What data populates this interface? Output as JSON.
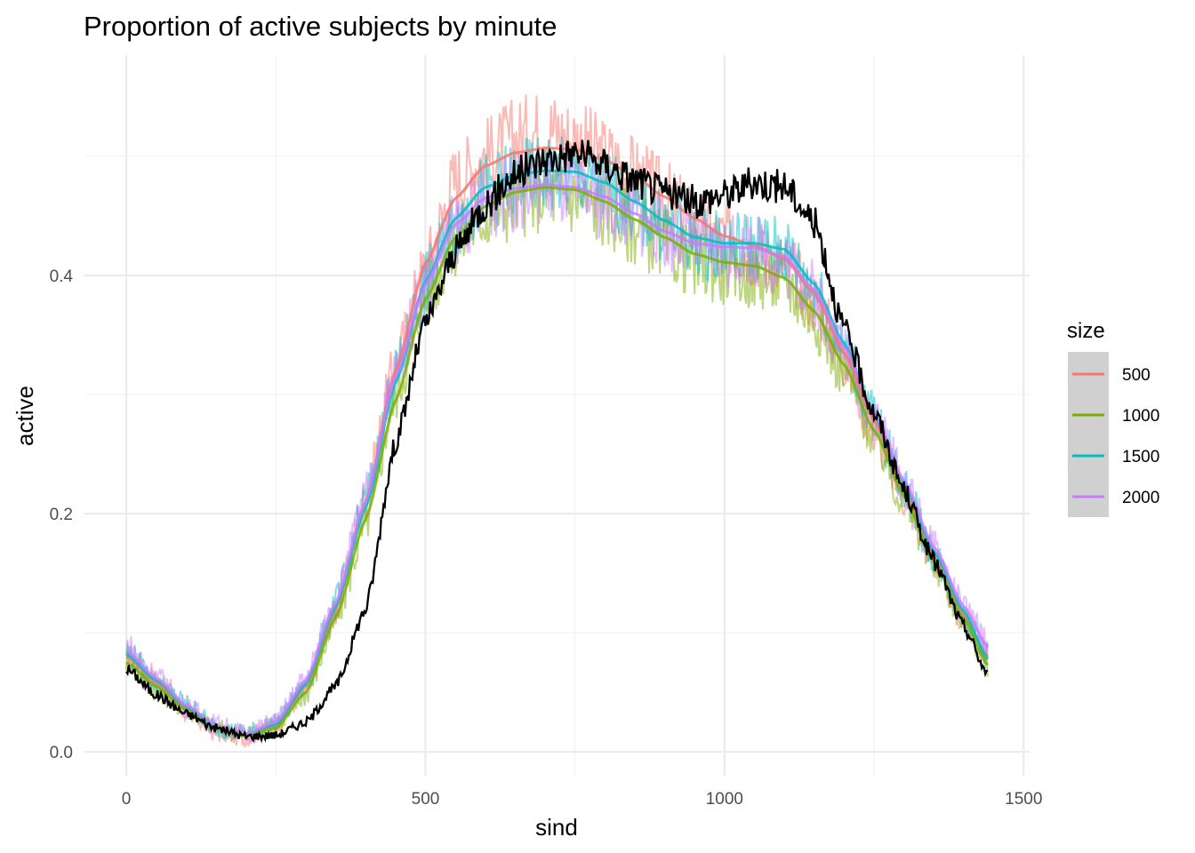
{
  "chart_data": {
    "type": "line",
    "title": "Proportion of active subjects by minute",
    "xlabel": "sind",
    "ylabel": "active",
    "xlim": [
      -70,
      1510
    ],
    "ylim": [
      -0.02,
      0.585
    ],
    "x_ticks": [
      0,
      500,
      1000,
      1500
    ],
    "x_tick_labels": [
      "0",
      "500",
      "1000",
      "1500"
    ],
    "y_ticks": [
      0.0,
      0.2,
      0.4
    ],
    "y_tick_labels": [
      "0.0",
      "0.2",
      "0.4"
    ],
    "grid": true,
    "legend": {
      "title": "size",
      "position": "right"
    },
    "x": [
      0,
      50,
      100,
      150,
      200,
      250,
      300,
      350,
      400,
      450,
      500,
      550,
      600,
      650,
      700,
      750,
      800,
      850,
      900,
      950,
      1000,
      1050,
      1100,
      1150,
      1200,
      1250,
      1300,
      1350,
      1400,
      1440
    ],
    "series": [
      {
        "name": "500",
        "color": "#F8766D",
        "smooth": [
          0.08,
          0.058,
          0.037,
          0.02,
          0.014,
          0.022,
          0.055,
          0.12,
          0.21,
          0.32,
          0.41,
          0.465,
          0.492,
          0.503,
          0.507,
          0.506,
          0.497,
          0.483,
          0.466,
          0.448,
          0.433,
          0.425,
          0.414,
          0.385,
          0.335,
          0.278,
          0.22,
          0.165,
          0.115,
          0.08
        ],
        "raw": [
          0.082,
          0.06,
          0.034,
          0.016,
          0.012,
          0.024,
          0.052,
          0.118,
          0.215,
          0.325,
          0.408,
          0.48,
          0.5,
          0.515,
          0.525,
          0.515,
          0.5,
          0.485,
          0.465,
          0.445,
          0.43,
          0.42,
          0.41,
          0.38,
          0.33,
          0.27,
          0.215,
          0.16,
          0.11,
          0.08
        ]
      },
      {
        "name": "1000",
        "color": "#7CAE00",
        "smooth": [
          0.075,
          0.055,
          0.035,
          0.019,
          0.013,
          0.02,
          0.05,
          0.113,
          0.195,
          0.295,
          0.38,
          0.432,
          0.458,
          0.47,
          0.474,
          0.472,
          0.462,
          0.447,
          0.432,
          0.418,
          0.411,
          0.408,
          0.398,
          0.37,
          0.325,
          0.27,
          0.215,
          0.16,
          0.112,
          0.073
        ],
        "raw": [
          0.078,
          0.052,
          0.036,
          0.02,
          0.014,
          0.021,
          0.048,
          0.11,
          0.19,
          0.3,
          0.382,
          0.428,
          0.452,
          0.462,
          0.47,
          0.465,
          0.455,
          0.44,
          0.425,
          0.41,
          0.405,
          0.4,
          0.395,
          0.365,
          0.32,
          0.265,
          0.21,
          0.158,
          0.11,
          0.072
        ]
      },
      {
        "name": "1500",
        "color": "#00BFC4",
        "smooth": [
          0.082,
          0.06,
          0.038,
          0.021,
          0.015,
          0.023,
          0.057,
          0.122,
          0.205,
          0.31,
          0.395,
          0.448,
          0.474,
          0.484,
          0.488,
          0.487,
          0.478,
          0.462,
          0.446,
          0.432,
          0.427,
          0.427,
          0.422,
          0.393,
          0.343,
          0.283,
          0.225,
          0.168,
          0.118,
          0.078
        ],
        "raw": [
          0.085,
          0.058,
          0.04,
          0.02,
          0.016,
          0.024,
          0.055,
          0.125,
          0.21,
          0.315,
          0.392,
          0.445,
          0.47,
          0.48,
          0.485,
          0.482,
          0.475,
          0.458,
          0.442,
          0.428,
          0.425,
          0.425,
          0.42,
          0.39,
          0.34,
          0.28,
          0.222,
          0.165,
          0.116,
          0.08
        ]
      },
      {
        "name": "2000",
        "color": "#C77CFF",
        "smooth": [
          0.085,
          0.062,
          0.039,
          0.022,
          0.015,
          0.025,
          0.06,
          0.125,
          0.21,
          0.315,
          0.393,
          0.443,
          0.465,
          0.473,
          0.476,
          0.474,
          0.466,
          0.452,
          0.437,
          0.427,
          0.424,
          0.423,
          0.416,
          0.388,
          0.34,
          0.285,
          0.228,
          0.172,
          0.122,
          0.088
        ],
        "raw": [
          0.09,
          0.064,
          0.038,
          0.023,
          0.015,
          0.026,
          0.062,
          0.128,
          0.215,
          0.318,
          0.395,
          0.44,
          0.462,
          0.47,
          0.475,
          0.47,
          0.462,
          0.45,
          0.435,
          0.425,
          0.42,
          0.42,
          0.412,
          0.385,
          0.338,
          0.282,
          0.226,
          0.17,
          0.12,
          0.09
        ]
      },
      {
        "name": "",
        "color": "#000000",
        "smooth": [
          0.07,
          0.048,
          0.032,
          0.02,
          0.013,
          0.014,
          0.025,
          0.055,
          0.12,
          0.26,
          0.36,
          0.42,
          0.46,
          0.485,
          0.497,
          0.503,
          0.493,
          0.48,
          0.47,
          0.462,
          0.468,
          0.478,
          0.475,
          0.445,
          0.355,
          0.285,
          0.22,
          0.16,
          0.105,
          0.065
        ],
        "raw": []
      }
    ]
  }
}
